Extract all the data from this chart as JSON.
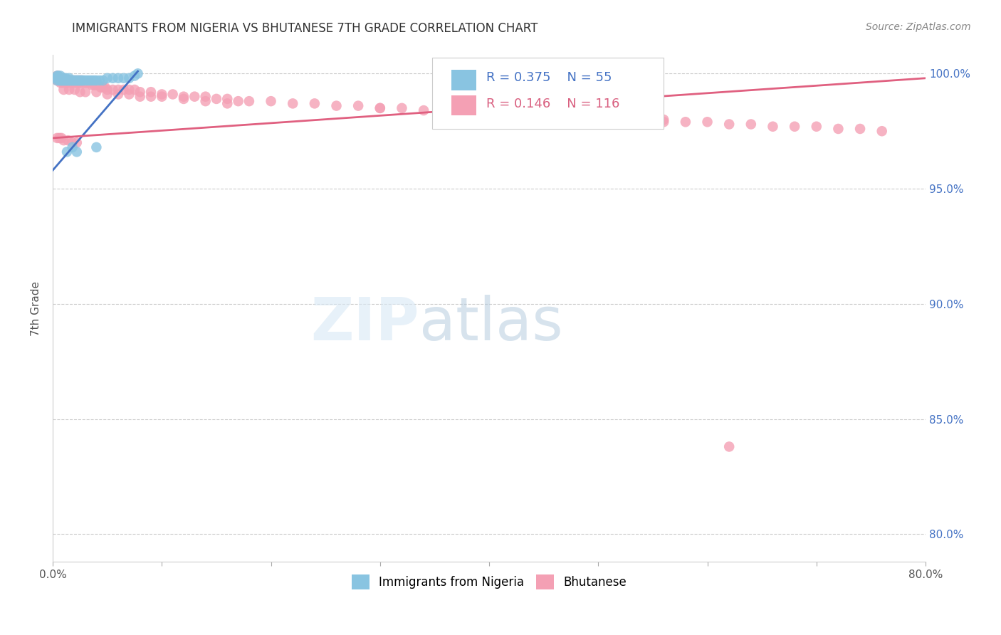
{
  "title": "IMMIGRANTS FROM NIGERIA VS BHUTANESE 7TH GRADE CORRELATION CHART",
  "source": "Source: ZipAtlas.com",
  "ylabel": "7th Grade",
  "xlim": [
    0.0,
    0.8
  ],
  "ylim": [
    0.788,
    1.008
  ],
  "yticks": [
    0.8,
    0.85,
    0.9,
    0.95,
    1.0
  ],
  "yticklabels": [
    "80.0%",
    "85.0%",
    "90.0%",
    "95.0%",
    "100.0%"
  ],
  "xtick_vals": [
    0.0,
    0.1,
    0.2,
    0.3,
    0.4,
    0.5,
    0.6,
    0.7,
    0.8
  ],
  "xticklabels": [
    "0.0%",
    "",
    "",
    "",
    "",
    "",
    "",
    "",
    "80.0%"
  ],
  "legend_blue_label": "Immigrants from Nigeria",
  "legend_pink_label": "Bhutanese",
  "R_blue": "0.375",
  "N_blue": "55",
  "R_pink": "0.146",
  "N_pink": "116",
  "blue_color": "#89C4E1",
  "pink_color": "#F4A0B4",
  "blue_line_color": "#4472C4",
  "pink_line_color": "#E06080",
  "blue_line_x": [
    0.0,
    0.078
  ],
  "blue_line_y": [
    0.958,
    1.001
  ],
  "pink_line_x": [
    0.0,
    0.8
  ],
  "pink_line_y": [
    0.972,
    0.998
  ],
  "blue_points_x": [
    0.003,
    0.004,
    0.004,
    0.005,
    0.005,
    0.006,
    0.006,
    0.007,
    0.007,
    0.007,
    0.008,
    0.008,
    0.009,
    0.009,
    0.01,
    0.01,
    0.011,
    0.012,
    0.012,
    0.013,
    0.014,
    0.015,
    0.015,
    0.016,
    0.017,
    0.018,
    0.019,
    0.02,
    0.021,
    0.022,
    0.023,
    0.024,
    0.025,
    0.026,
    0.027,
    0.028,
    0.03,
    0.032,
    0.034,
    0.036,
    0.038,
    0.04,
    0.043,
    0.046,
    0.05,
    0.055,
    0.06,
    0.065,
    0.07,
    0.075,
    0.013,
    0.018,
    0.022,
    0.04,
    0.078
  ],
  "blue_points_y": [
    0.998,
    0.999,
    0.997,
    0.999,
    0.998,
    0.998,
    0.997,
    0.999,
    0.998,
    0.997,
    0.998,
    0.997,
    0.998,
    0.997,
    0.998,
    0.997,
    0.997,
    0.998,
    0.997,
    0.997,
    0.997,
    0.998,
    0.997,
    0.997,
    0.997,
    0.997,
    0.997,
    0.997,
    0.997,
    0.997,
    0.997,
    0.997,
    0.997,
    0.997,
    0.997,
    0.997,
    0.997,
    0.997,
    0.997,
    0.997,
    0.997,
    0.997,
    0.997,
    0.997,
    0.998,
    0.998,
    0.998,
    0.998,
    0.998,
    0.999,
    0.966,
    0.968,
    0.966,
    0.968,
    1.0
  ],
  "pink_points_x": [
    0.003,
    0.004,
    0.004,
    0.005,
    0.005,
    0.006,
    0.006,
    0.007,
    0.007,
    0.008,
    0.008,
    0.009,
    0.009,
    0.01,
    0.01,
    0.011,
    0.011,
    0.012,
    0.012,
    0.013,
    0.013,
    0.014,
    0.015,
    0.015,
    0.016,
    0.017,
    0.018,
    0.019,
    0.02,
    0.021,
    0.022,
    0.023,
    0.024,
    0.025,
    0.026,
    0.028,
    0.03,
    0.032,
    0.034,
    0.036,
    0.038,
    0.04,
    0.042,
    0.044,
    0.046,
    0.048,
    0.05,
    0.055,
    0.06,
    0.065,
    0.07,
    0.075,
    0.08,
    0.09,
    0.1,
    0.11,
    0.12,
    0.13,
    0.14,
    0.15,
    0.16,
    0.17,
    0.18,
    0.2,
    0.22,
    0.24,
    0.26,
    0.28,
    0.3,
    0.32,
    0.34,
    0.36,
    0.38,
    0.4,
    0.42,
    0.44,
    0.46,
    0.48,
    0.5,
    0.52,
    0.54,
    0.56,
    0.58,
    0.6,
    0.62,
    0.64,
    0.66,
    0.68,
    0.7,
    0.72,
    0.74,
    0.76,
    0.01,
    0.015,
    0.02,
    0.025,
    0.03,
    0.04,
    0.05,
    0.06,
    0.07,
    0.08,
    0.09,
    0.1,
    0.12,
    0.14,
    0.16,
    0.3,
    0.56,
    0.62,
    0.004,
    0.006,
    0.008,
    0.01,
    0.014,
    0.018,
    0.022
  ],
  "pink_points_y": [
    0.998,
    0.999,
    0.997,
    0.999,
    0.997,
    0.998,
    0.997,
    0.998,
    0.996,
    0.998,
    0.997,
    0.998,
    0.996,
    0.998,
    0.997,
    0.997,
    0.996,
    0.997,
    0.996,
    0.997,
    0.996,
    0.997,
    0.997,
    0.996,
    0.997,
    0.996,
    0.997,
    0.996,
    0.997,
    0.996,
    0.997,
    0.996,
    0.997,
    0.996,
    0.997,
    0.996,
    0.996,
    0.996,
    0.996,
    0.995,
    0.995,
    0.995,
    0.995,
    0.994,
    0.994,
    0.994,
    0.993,
    0.993,
    0.993,
    0.993,
    0.993,
    0.993,
    0.992,
    0.992,
    0.991,
    0.991,
    0.99,
    0.99,
    0.99,
    0.989,
    0.989,
    0.988,
    0.988,
    0.988,
    0.987,
    0.987,
    0.986,
    0.986,
    0.985,
    0.985,
    0.984,
    0.984,
    0.983,
    0.983,
    0.982,
    0.982,
    0.981,
    0.981,
    0.981,
    0.98,
    0.98,
    0.979,
    0.979,
    0.979,
    0.978,
    0.978,
    0.977,
    0.977,
    0.977,
    0.976,
    0.976,
    0.975,
    0.993,
    0.993,
    0.993,
    0.992,
    0.992,
    0.992,
    0.991,
    0.991,
    0.991,
    0.99,
    0.99,
    0.99,
    0.989,
    0.988,
    0.987,
    0.985,
    0.98,
    0.838,
    0.972,
    0.972,
    0.972,
    0.971,
    0.971,
    0.97,
    0.97
  ]
}
